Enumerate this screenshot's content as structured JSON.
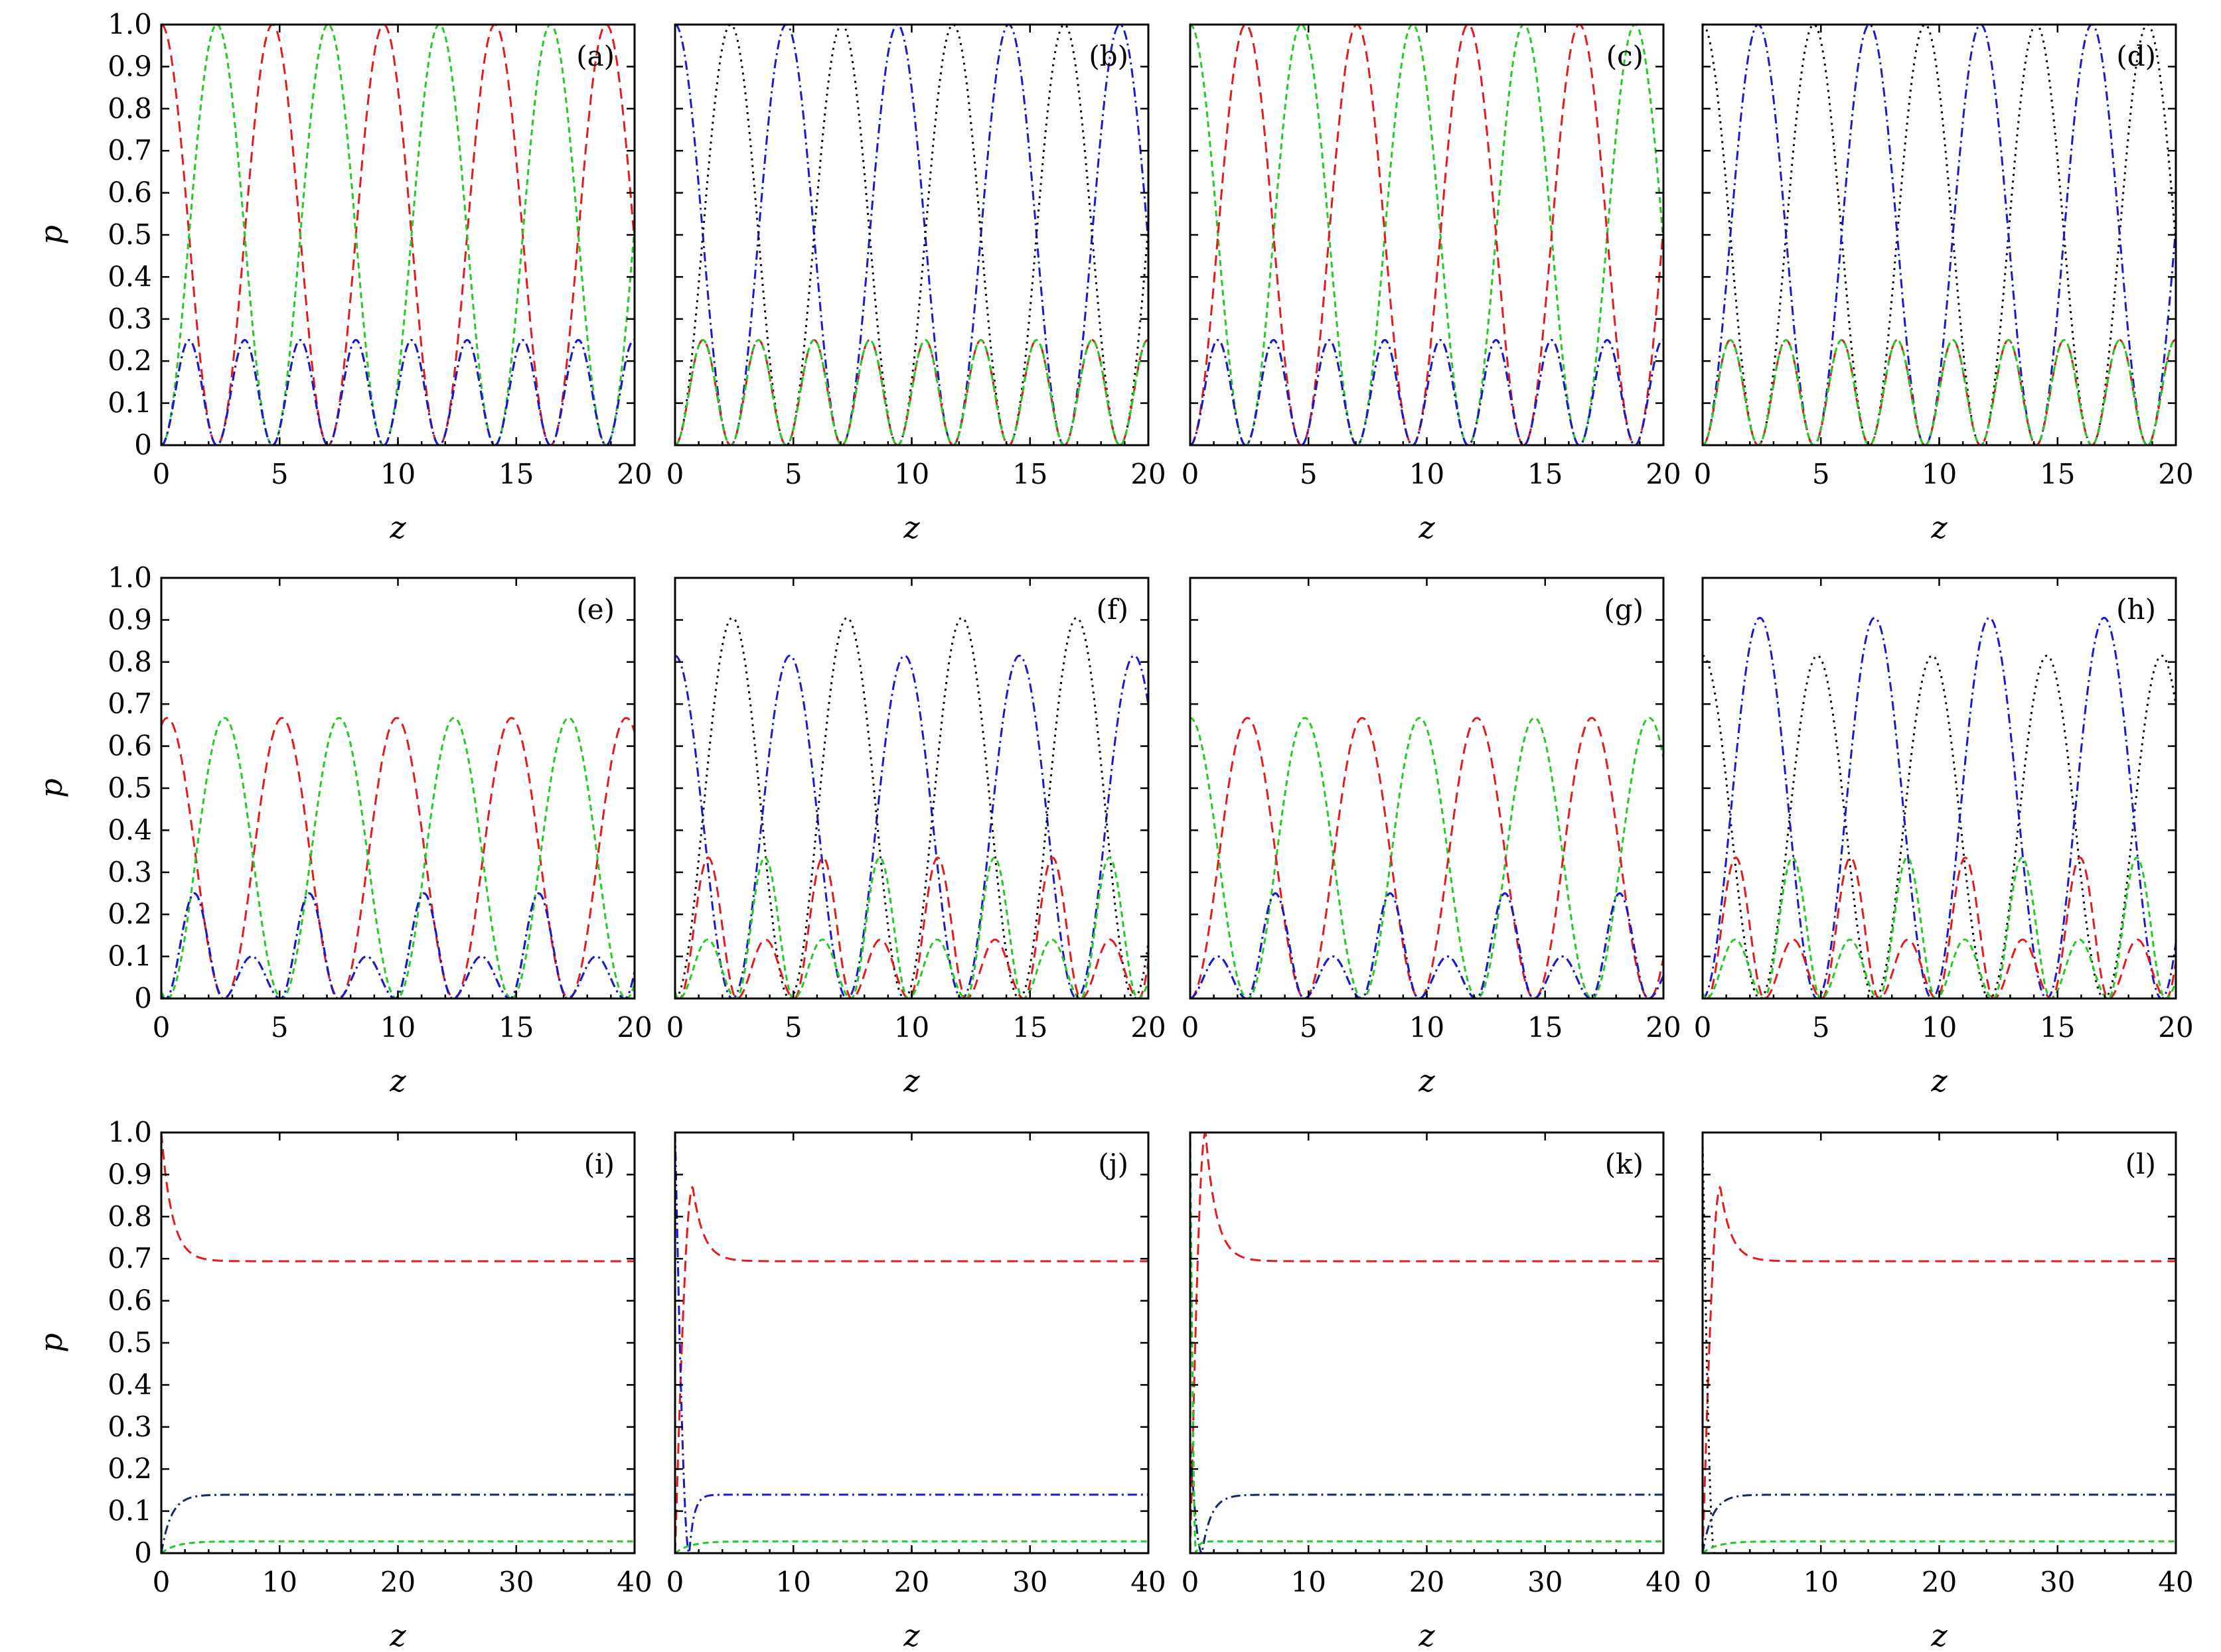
{
  "figure": {
    "colors": {
      "red": "#e41a1c",
      "green": "#22cc22",
      "blue": "#1a1acc",
      "navy": "#102a6a",
      "black": "#000000"
    },
    "styles": {
      "red": "dashed",
      "green": "short-dashed",
      "blue": "dash-dot",
      "navy": "dash-dot",
      "black": "dotted"
    }
  },
  "chart_data": [
    {
      "type": "line",
      "panel": "(a)",
      "xlabel": "z",
      "ylabel": "p",
      "xlim": [
        0,
        20
      ],
      "ylim": [
        0,
        1
      ],
      "xticks": [
        "0",
        "5",
        "10",
        "15",
        "20"
      ],
      "yticks": [
        "0",
        "0.1",
        "0.2",
        "0.3",
        "0.4",
        "0.5",
        "0.6",
        "0.7",
        "0.8",
        "0.9",
        "1.0"
      ],
      "series": [
        {
          "color": "red",
          "kind": "osc",
          "amplitude": 1.0,
          "period": 4.7,
          "phase": 0.0,
          "shape": "cos2"
        },
        {
          "color": "green",
          "kind": "osc",
          "amplitude": 1.0,
          "period": 4.7,
          "phase": 2.35,
          "shape": "cos2"
        },
        {
          "color": "navy",
          "kind": "osc",
          "amplitude": 0.25,
          "period": 2.35,
          "phase": 1.175,
          "shape": "cos2"
        },
        {
          "color": "blue",
          "kind": "osc",
          "amplitude": 0.25,
          "period": 2.35,
          "phase": 1.175,
          "shape": "cos2"
        },
        {
          "color": "black",
          "kind": "flat",
          "value": 0.0
        }
      ]
    },
    {
      "type": "line",
      "panel": "(b)",
      "xlabel": "z",
      "ylabel": "",
      "xlim": [
        0,
        20
      ],
      "ylim": [
        0,
        1
      ],
      "xticks": [
        "0",
        "5",
        "10",
        "15",
        "20"
      ],
      "yticks": [],
      "series": [
        {
          "color": "blue",
          "kind": "osc",
          "amplitude": 1.0,
          "period": 4.7,
          "phase": 0.0,
          "shape": "cos2"
        },
        {
          "color": "black",
          "kind": "osc",
          "amplitude": 1.0,
          "period": 4.7,
          "phase": 2.35,
          "shape": "cos2"
        },
        {
          "color": "red",
          "kind": "osc",
          "amplitude": 0.25,
          "period": 2.35,
          "phase": 1.175,
          "shape": "cos2"
        },
        {
          "color": "green",
          "kind": "osc",
          "amplitude": 0.25,
          "period": 2.35,
          "phase": 1.175,
          "shape": "cos2"
        }
      ]
    },
    {
      "type": "line",
      "panel": "(c)",
      "xlabel": "z",
      "ylabel": "",
      "xlim": [
        0,
        20
      ],
      "ylim": [
        0,
        1
      ],
      "xticks": [
        "0",
        "5",
        "10",
        "15",
        "20"
      ],
      "yticks": [],
      "series": [
        {
          "color": "green",
          "kind": "osc",
          "amplitude": 1.0,
          "period": 4.7,
          "phase": 0.0,
          "shape": "cos2"
        },
        {
          "color": "red",
          "kind": "osc",
          "amplitude": 1.0,
          "period": 4.7,
          "phase": 2.35,
          "shape": "cos2"
        },
        {
          "color": "navy",
          "kind": "osc",
          "amplitude": 0.25,
          "period": 2.35,
          "phase": 1.175,
          "shape": "cos2"
        },
        {
          "color": "blue",
          "kind": "osc",
          "amplitude": 0.25,
          "period": 2.35,
          "phase": 1.175,
          "shape": "cos2"
        }
      ]
    },
    {
      "type": "line",
      "panel": "(d)",
      "xlabel": "z",
      "ylabel": "",
      "xlim": [
        0,
        20
      ],
      "ylim": [
        0,
        1
      ],
      "xticks": [
        "0",
        "5",
        "10",
        "15",
        "20"
      ],
      "yticks": [],
      "series": [
        {
          "color": "black",
          "kind": "osc",
          "amplitude": 1.0,
          "period": 4.7,
          "phase": 0.0,
          "shape": "cos2"
        },
        {
          "color": "blue",
          "kind": "osc",
          "amplitude": 1.0,
          "period": 4.7,
          "phase": 2.35,
          "shape": "cos2"
        },
        {
          "color": "red",
          "kind": "osc",
          "amplitude": 0.25,
          "period": 2.35,
          "phase": 1.175,
          "shape": "cos2"
        },
        {
          "color": "green",
          "kind": "osc",
          "amplitude": 0.25,
          "period": 2.35,
          "phase": 1.175,
          "shape": "cos2"
        }
      ]
    },
    {
      "type": "line",
      "panel": "(e)",
      "xlabel": "z",
      "ylabel": "p",
      "xlim": [
        0,
        20
      ],
      "ylim": [
        0,
        1
      ],
      "xticks": [
        "0",
        "5",
        "10",
        "15",
        "20"
      ],
      "yticks": [
        "0",
        "0.1",
        "0.2",
        "0.3",
        "0.4",
        "0.5",
        "0.6",
        "0.7",
        "0.8",
        "0.9",
        "1.0"
      ],
      "series": [
        {
          "color": "red",
          "kind": "osc",
          "amplitude": 0.667,
          "period": 4.85,
          "phase": 0.25,
          "shape": "cos2"
        },
        {
          "color": "green",
          "kind": "osc",
          "amplitude": 0.667,
          "period": 4.85,
          "phase": 2.67,
          "shape": "cos2"
        },
        {
          "color": "navy",
          "kind": "osc2",
          "amplitude": 0.25,
          "amplitude2": 0.1,
          "period": 4.85,
          "phase": 1.4,
          "shape": "double"
        },
        {
          "color": "blue",
          "kind": "osc2",
          "amplitude": 0.25,
          "amplitude2": 0.1,
          "period": 4.85,
          "phase": 1.4,
          "shape": "double"
        }
      ]
    },
    {
      "type": "line",
      "panel": "(f)",
      "xlabel": "z",
      "ylabel": "",
      "xlim": [
        0,
        20
      ],
      "ylim": [
        0,
        1
      ],
      "xticks": [
        "0",
        "5",
        "10",
        "15",
        "20"
      ],
      "yticks": [],
      "series": [
        {
          "color": "blue",
          "kind": "osc",
          "amplitude": 0.815,
          "period": 4.85,
          "phase": 0.0,
          "shape": "cos2"
        },
        {
          "color": "black",
          "kind": "osc",
          "amplitude": 0.905,
          "period": 4.85,
          "phase": 2.42,
          "shape": "cos2"
        },
        {
          "color": "red",
          "kind": "osc2",
          "amplitude": 0.335,
          "amplitude2": 0.14,
          "period": 4.85,
          "phase": 1.4,
          "shape": "double"
        },
        {
          "color": "green",
          "kind": "osc2",
          "amplitude": 0.335,
          "amplitude2": 0.14,
          "period": 4.85,
          "phase": 3.8,
          "shape": "double"
        }
      ]
    },
    {
      "type": "line",
      "panel": "(g)",
      "xlabel": "z",
      "ylabel": "",
      "xlim": [
        0,
        20
      ],
      "ylim": [
        0,
        1
      ],
      "xticks": [
        "0",
        "5",
        "10",
        "15",
        "20"
      ],
      "yticks": [],
      "series": [
        {
          "color": "green",
          "kind": "osc",
          "amplitude": 0.667,
          "period": 4.85,
          "phase": 0.0,
          "shape": "cos2"
        },
        {
          "color": "red",
          "kind": "osc",
          "amplitude": 0.667,
          "period": 4.85,
          "phase": 2.42,
          "shape": "cos2"
        },
        {
          "color": "navy",
          "kind": "osc2",
          "amplitude": 0.25,
          "amplitude2": 0.1,
          "period": 4.85,
          "phase": 3.6,
          "shape": "double"
        },
        {
          "color": "blue",
          "kind": "osc2",
          "amplitude": 0.25,
          "amplitude2": 0.1,
          "period": 4.85,
          "phase": 3.6,
          "shape": "double"
        }
      ]
    },
    {
      "type": "line",
      "panel": "(h)",
      "xlabel": "z",
      "ylabel": "",
      "xlim": [
        0,
        20
      ],
      "ylim": [
        0,
        1
      ],
      "xticks": [
        "0",
        "5",
        "10",
        "15",
        "20"
      ],
      "yticks": [],
      "series": [
        {
          "color": "black",
          "kind": "osc",
          "amplitude": 0.815,
          "period": 4.85,
          "phase": 0.0,
          "shape": "cos2"
        },
        {
          "color": "blue",
          "kind": "osc",
          "amplitude": 0.905,
          "period": 4.85,
          "phase": 2.42,
          "shape": "cos2"
        },
        {
          "color": "red",
          "kind": "osc2",
          "amplitude": 0.335,
          "amplitude2": 0.14,
          "period": 4.85,
          "phase": 1.4,
          "shape": "double"
        },
        {
          "color": "green",
          "kind": "osc2",
          "amplitude": 0.335,
          "amplitude2": 0.14,
          "period": 4.85,
          "phase": 3.8,
          "shape": "double"
        }
      ]
    },
    {
      "type": "line",
      "panel": "(i)",
      "xlabel": "z",
      "ylabel": "p",
      "xlim": [
        0,
        40
      ],
      "ylim": [
        0,
        1
      ],
      "xticks": [
        "0",
        "10",
        "20",
        "30",
        "40"
      ],
      "yticks": [
        "0",
        "0.1",
        "0.2",
        "0.3",
        "0.4",
        "0.5",
        "0.6",
        "0.7",
        "0.8",
        "0.9",
        "1.0"
      ],
      "series": [
        {
          "color": "red",
          "kind": "decay",
          "start": 1.0,
          "end": 0.694,
          "rate": 1.1,
          "peak_at": 0.0
        },
        {
          "color": "navy",
          "kind": "rise",
          "start": 0.0,
          "end": 0.139,
          "rate": 1.2
        },
        {
          "color": "green",
          "kind": "rise",
          "start": 0.0,
          "end": 0.028,
          "rate": 0.8
        }
      ]
    },
    {
      "type": "line",
      "panel": "(j)",
      "xlabel": "z",
      "ylabel": "",
      "xlim": [
        0,
        40
      ],
      "ylim": [
        0,
        1
      ],
      "xticks": [
        "0",
        "10",
        "20",
        "30",
        "40"
      ],
      "yticks": [],
      "series": [
        {
          "color": "red",
          "kind": "spike",
          "start": 0.0,
          "peak": 0.87,
          "peak_at": 1.5,
          "end": 0.694,
          "rate": 1.1
        },
        {
          "color": "blue",
          "kind": "fall",
          "start": 1.0,
          "end": 0.139,
          "rate": 2.5,
          "dip": 0.0,
          "dip_at": 1.2
        },
        {
          "color": "green",
          "kind": "rise",
          "start": 0.0,
          "end": 0.028,
          "rate": 0.8
        }
      ]
    },
    {
      "type": "line",
      "panel": "(k)",
      "xlabel": "z",
      "ylabel": "",
      "xlim": [
        0,
        40
      ],
      "ylim": [
        0,
        1
      ],
      "xticks": [
        "0",
        "10",
        "20",
        "30",
        "40"
      ],
      "yticks": [],
      "series": [
        {
          "color": "red",
          "kind": "spike",
          "start": 0.0,
          "peak": 1.0,
          "peak_at": 1.3,
          "end": 0.694,
          "rate": 1.1
        },
        {
          "color": "navy",
          "kind": "fall",
          "start": 0.25,
          "end": 0.139,
          "rate": 1.3,
          "dip": 0.0,
          "dip_at": 1.0
        },
        {
          "color": "green",
          "kind": "fall",
          "start": 1.0,
          "end": 0.028,
          "rate": 4.0,
          "dip": 0.0,
          "dip_at": 0.5
        }
      ]
    },
    {
      "type": "line",
      "panel": "(l)",
      "xlabel": "z",
      "ylabel": "",
      "xlim": [
        0,
        40
      ],
      "ylim": [
        0,
        1
      ],
      "xticks": [
        "0",
        "10",
        "20",
        "30",
        "40"
      ],
      "yticks": [],
      "series": [
        {
          "color": "red",
          "kind": "spike",
          "start": 0.0,
          "peak": 0.87,
          "peak_at": 1.5,
          "end": 0.694,
          "rate": 1.1
        },
        {
          "color": "black",
          "kind": "fall",
          "start": 0.98,
          "end": 0.0,
          "rate": 3.0,
          "dip": 0.0,
          "dip_at": 1.0
        },
        {
          "color": "navy",
          "kind": "rise",
          "start": 0.0,
          "end": 0.139,
          "rate": 1.2
        },
        {
          "color": "green",
          "kind": "rise",
          "start": 0.0,
          "end": 0.028,
          "rate": 0.8
        }
      ]
    }
  ]
}
